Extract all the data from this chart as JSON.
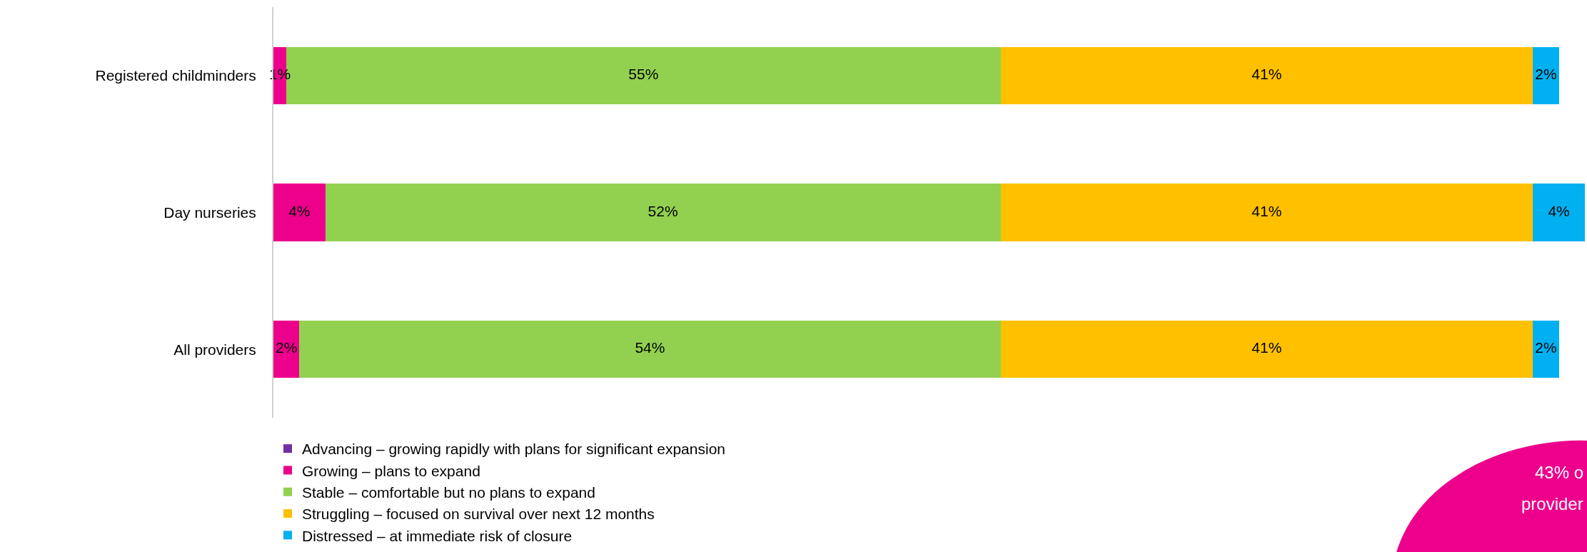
{
  "chart_data": {
    "type": "bar",
    "orientation": "horizontal",
    "stacked": true,
    "legend": "bottom",
    "categories": [
      "Registered childminders",
      "Day nurseries",
      "All providers"
    ],
    "series": [
      {
        "name": "Advancing – growing rapidly with plans for significant expansion",
        "color": "#7030a0",
        "values": [
          0,
          0,
          0
        ],
        "value_labels": [
          null,
          null,
          null
        ]
      },
      {
        "name": "Growing – plans to expand",
        "color": "#ec008c",
        "values": [
          1,
          4,
          2
        ],
        "value_labels": [
          "1%",
          "4%",
          "2%"
        ]
      },
      {
        "name": "Stable – comfortable but no plans to expand",
        "color": "#92d050",
        "values": [
          55,
          52,
          54
        ],
        "value_labels": [
          "55%",
          "52%",
          "54%"
        ]
      },
      {
        "name": "Struggling – focused on survival over next 12 months",
        "color": "#ffc000",
        "values": [
          41,
          41,
          41
        ],
        "value_labels": [
          "41%",
          "41%",
          "41%"
        ]
      },
      {
        "name": "Distressed – at immediate risk of closure",
        "color": "#00b0f0",
        "values": [
          2,
          4,
          2
        ],
        "value_labels": [
          "2%",
          "4%",
          "2%"
        ]
      }
    ],
    "annotations": [
      "43% o",
      "provider"
    ]
  }
}
